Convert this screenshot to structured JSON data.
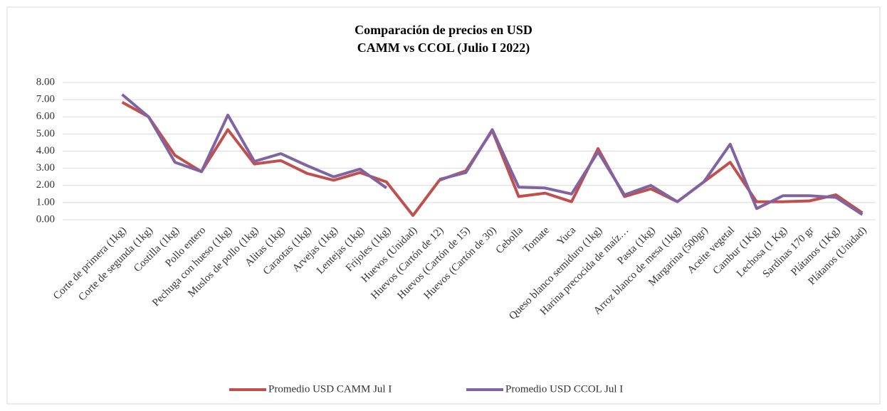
{
  "chart_data": {
    "type": "line",
    "title": "Comparación de precios en USD",
    "subtitle": "CAMM vs CCOL (Julio I 2022)",
    "categories": [
      "Corte de primera (1kg)",
      "Corte de segunda (1kg)",
      "Costilla (1kg)",
      "Pollo entero",
      "Pechuga con hueso (1kg)",
      "Muslos de pollo (1kg)",
      "Alitas (1kg)",
      "Caraotas (1kg)",
      "Arvejas (1kg)",
      "Lentejas (1kg)",
      "Frijoles (1kg)",
      "Huevos (Unidad)",
      "Huevos (Cartón de 12)",
      "Huevos (Cartón de 15)",
      "Huevos (Cartón de 30)",
      "Cebolla",
      "Tomate",
      "Yuca",
      "Queso blanco semiduro (1kg)",
      "Harina precocida de maíz…",
      "Pasta (1kg)",
      "Arroz blanco de mesa (1kg)",
      "Margarina (500gr)",
      "Aceite vegetal",
      "Cambur (1Kg)",
      "Lechosa (1 Kg)",
      "Sardinas 170 gr",
      "Plátanos (1Kg)",
      "Plátanos (Unidad)"
    ],
    "series": [
      {
        "name": "Promedio USD CAMM Jul I",
        "color": "#c0504d",
        "values": [
          6.85,
          6.0,
          3.75,
          2.8,
          5.25,
          3.25,
          3.45,
          2.7,
          2.3,
          2.75,
          2.2,
          0.25,
          2.3,
          2.85,
          5.2,
          1.35,
          1.55,
          1.05,
          4.15,
          1.35,
          1.8,
          1.05,
          2.2,
          3.35,
          1.05,
          1.05,
          1.1,
          1.45,
          0.4
        ]
      },
      {
        "name": "Promedio USD CCOL Jul I",
        "color": "#8064a2",
        "values": [
          7.3,
          6.0,
          3.35,
          2.8,
          6.1,
          3.4,
          3.85,
          3.15,
          2.5,
          2.95,
          1.85,
          null,
          2.35,
          2.75,
          5.25,
          1.9,
          1.85,
          1.5,
          3.95,
          1.45,
          2.0,
          1.05,
          2.2,
          4.4,
          0.65,
          1.4,
          1.4,
          1.3,
          0.3
        ]
      }
    ],
    "ylim": [
      0,
      8
    ],
    "yticks": [
      {
        "value": 0,
        "label": "0.00"
      },
      {
        "value": 1,
        "label": "1.00"
      },
      {
        "value": 2,
        "label": "2.00"
      },
      {
        "value": 3,
        "label": "3.00"
      },
      {
        "value": 4,
        "label": "4.00"
      },
      {
        "value": 5,
        "label": "5.00"
      },
      {
        "value": 6,
        "label": "6.00"
      },
      {
        "value": 7,
        "label": "7.00"
      },
      {
        "value": 8,
        "label": "8.00"
      }
    ],
    "grid": true,
    "legend": "bottom"
  }
}
